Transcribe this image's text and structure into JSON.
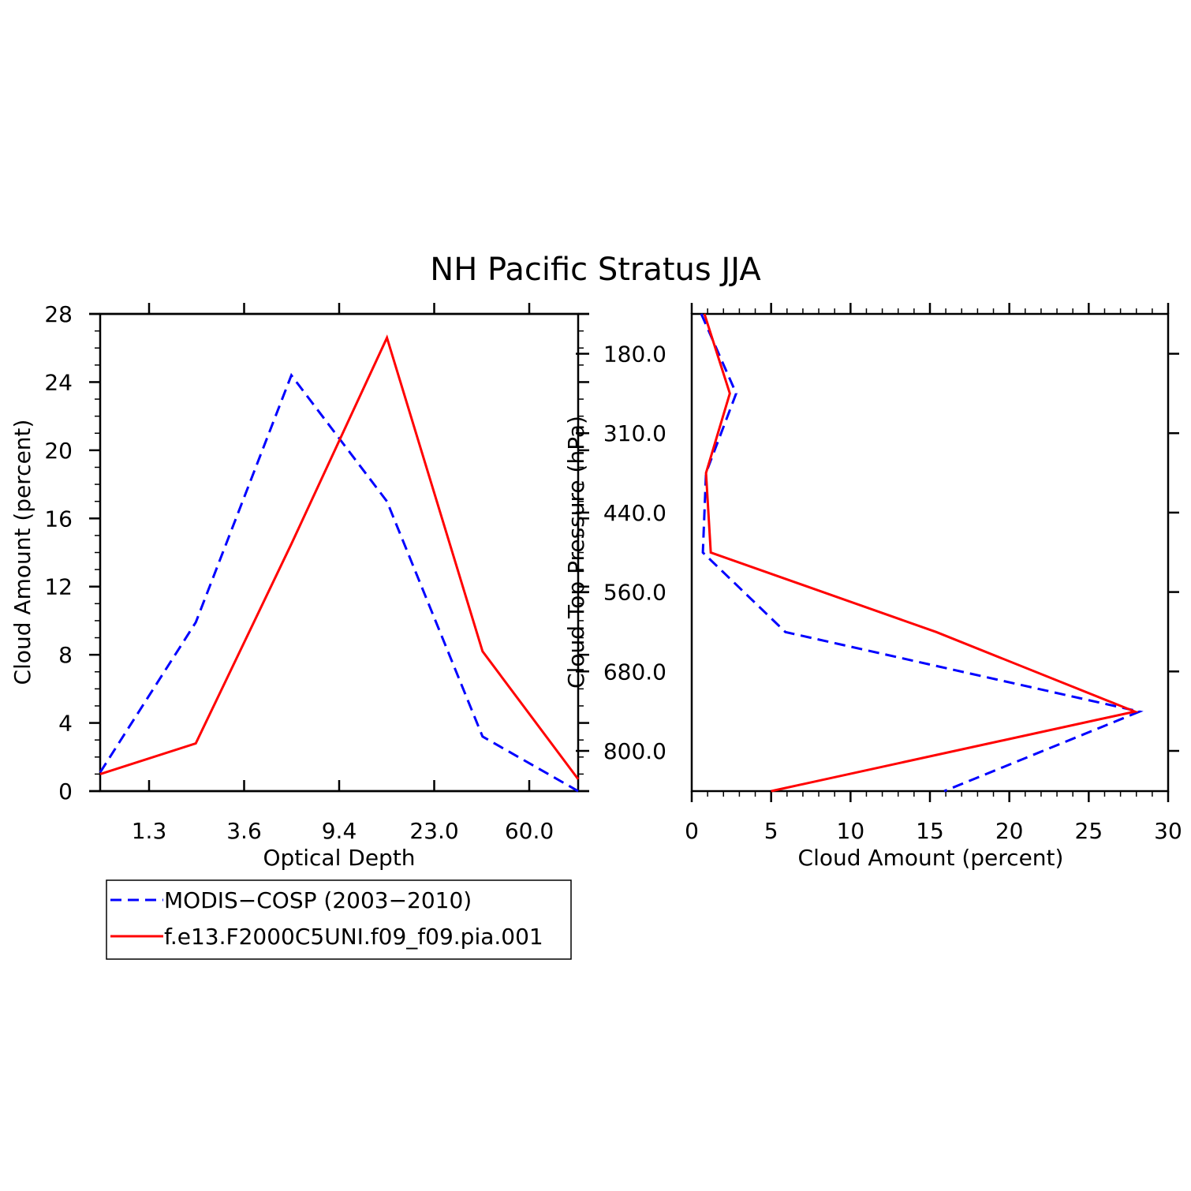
{
  "figure_title": "NH Pacific Stratus JJA",
  "colors": {
    "modis": "#0000ff",
    "model": "#ff0000",
    "axes": "#000000"
  },
  "legend": {
    "placement": "below left panel",
    "entries": [
      {
        "label": "MODIS−COSP (2003−2010)",
        "color": "#0000ff",
        "dash": "dashed"
      },
      {
        "label": "f.e13.F2000C5UNI.f09_f09.pia.001",
        "color": "#ff0000",
        "dash": "solid"
      }
    ]
  },
  "chart_data": [
    {
      "type": "line",
      "xlabel": "Optical Depth",
      "ylabel": "Cloud Amount (percent)",
      "x_tick_labels": [
        "1.3",
        "3.6",
        "9.4",
        "23.0",
        "60.0"
      ],
      "x_bins": [
        0.3,
        1.3,
        3.6,
        9.4,
        23.0,
        60.0,
        100.0
      ],
      "ylim": [
        0,
        28
      ],
      "y_ticks": [
        0,
        4,
        8,
        12,
        16,
        20,
        24,
        28
      ],
      "grid": false,
      "series": [
        {
          "name": "MODIS−COSP (2003−2010)",
          "values": [
            1.1,
            9.9,
            24.4,
            17.0,
            3.2,
            0.0
          ]
        },
        {
          "name": "f.e13.F2000C5UNI.f09_f09.pia.001",
          "values": [
            1.0,
            2.8,
            14.5,
            26.6,
            8.2,
            0.7
          ]
        }
      ]
    },
    {
      "type": "line",
      "xlabel": "Cloud Amount (percent)",
      "ylabel": "Cloud Top Pressure (hPa)",
      "xlim": [
        0,
        30
      ],
      "x_ticks": [
        0,
        5,
        10,
        15,
        20,
        25,
        30
      ],
      "y_tick_labels": [
        "180.0",
        "310.0",
        "440.0",
        "560.0",
        "680.0",
        "800.0"
      ],
      "pressure_levels": [
        50,
        180,
        310,
        440,
        560,
        680,
        800,
        1000
      ],
      "grid": false,
      "series": [
        {
          "name": "MODIS−COSP (2003−2010)",
          "values": [
            0.6,
            2.8,
            0.9,
            0.7,
            5.9,
            28.2,
            15.9
          ]
        },
        {
          "name": "f.e13.F2000C5UNI.f09_f09.pia.001",
          "values": [
            0.8,
            2.4,
            0.9,
            1.2,
            15.4,
            27.9,
            5.0
          ]
        }
      ]
    }
  ]
}
